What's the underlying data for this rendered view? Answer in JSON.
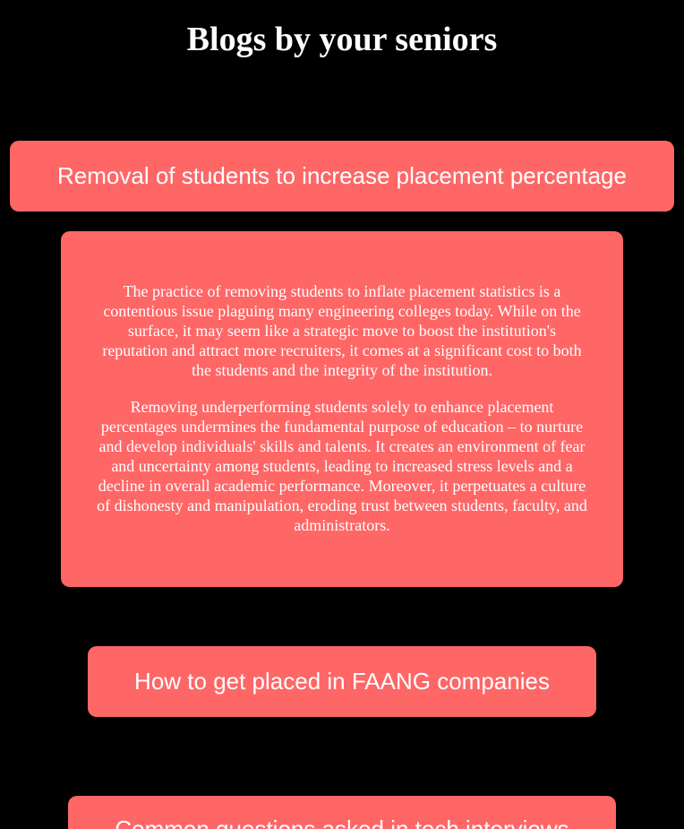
{
  "page": {
    "title": "Blogs by your seniors",
    "background": "#000000",
    "accent": "#ff6666"
  },
  "blogs": [
    {
      "title": "Removal of students to increase placement percentage",
      "expanded": true,
      "paragraphs": [
        "The practice of removing students to inflate placement statistics is a contentious issue plaguing many engineering colleges today. While on the surface, it may seem like a strategic move to boost the institution's reputation and attract more recruiters, it comes at a significant cost to both the students and the integrity of the institution.",
        "Removing underperforming students solely to enhance placement percentages undermines the fundamental purpose of education – to nurture and develop individuals' skills and talents. It creates an environment of fear and uncertainty among students, leading to increased stress levels and a decline in overall academic performance. Moreover, it perpetuates a culture of dishonesty and manipulation, eroding trust between students, faculty, and administrators."
      ]
    },
    {
      "title": "How to get placed in FAANG companies",
      "expanded": false
    },
    {
      "title": "Common questions asked in tech interviews",
      "expanded": false
    }
  ]
}
